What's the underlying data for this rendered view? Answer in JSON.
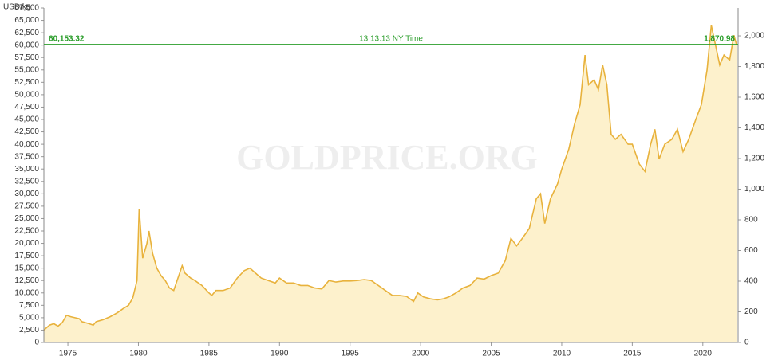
{
  "chart_data": {
    "type": "area",
    "y_axis_label": "USD/kg",
    "watermark": "GOLDPRICE.ORG",
    "time_label": "13:13:13 NY Time",
    "current_kg": {
      "value": 60153.32,
      "label": "60,153.32"
    },
    "current_oz": {
      "value": 1870.98,
      "label": "1,870.98"
    },
    "line_color": "#e8b23c",
    "fill_color": "#fdf1cc",
    "current_color": "#2a9d2a",
    "xlim": [
      1973.3,
      2022.5
    ],
    "xticks": [
      1975,
      1980,
      1985,
      1990,
      1995,
      2000,
      2005,
      2010,
      2015,
      2020
    ],
    "ylim": [
      0,
      67500
    ],
    "yticks": [
      0,
      {
        "value": 2500,
        "label": "2,500"
      },
      {
        "value": 5000,
        "label": "5,000"
      },
      {
        "value": 7500,
        "label": "7,500"
      },
      {
        "value": 10000,
        "label": "10,000"
      },
      {
        "value": 12500,
        "label": "12,500"
      },
      {
        "value": 15000,
        "label": "15,000"
      },
      {
        "value": 17500,
        "label": "17,500"
      },
      {
        "value": 20000,
        "label": "20,000"
      },
      {
        "value": 22500,
        "label": "22,500"
      },
      {
        "value": 25000,
        "label": "25,000"
      },
      {
        "value": 27500,
        "label": "27,500"
      },
      {
        "value": 30000,
        "label": "30,000"
      },
      {
        "value": 32500,
        "label": "32,500"
      },
      {
        "value": 35000,
        "label": "35,000"
      },
      {
        "value": 37500,
        "label": "37,500"
      },
      {
        "value": 40000,
        "label": "40,000"
      },
      {
        "value": 42500,
        "label": "42,500"
      },
      {
        "value": 45000,
        "label": "45,000"
      },
      {
        "value": 47500,
        "label": "47,500"
      },
      {
        "value": 50000,
        "label": "50,000"
      },
      {
        "value": 52500,
        "label": "52,500"
      },
      {
        "value": 55000,
        "label": "55,000"
      },
      {
        "value": 57500,
        "label": "57,500"
      },
      {
        "value": 60000,
        "label": "60,000"
      },
      {
        "value": 62500,
        "label": "62,500"
      },
      {
        "value": 65000,
        "label": "65,000"
      },
      {
        "value": 67500,
        "label": "67,500"
      }
    ],
    "y2lim": [
      0,
      2182
    ],
    "y2ticks": [
      0,
      200,
      400,
      600,
      800,
      {
        "value": 1000,
        "label": "1,000"
      },
      {
        "value": 1200,
        "label": "1,200"
      },
      {
        "value": 1400,
        "label": "1,400"
      },
      {
        "value": 1600,
        "label": "1,600"
      },
      {
        "value": 1800,
        "label": "1,800"
      },
      {
        "value": 2000,
        "label": "2,000"
      }
    ],
    "x": [
      1973.3,
      1973.7,
      1974.0,
      1974.3,
      1974.6,
      1974.9,
      1975.2,
      1975.5,
      1975.8,
      1976.0,
      1976.5,
      1976.8,
      1977.0,
      1977.5,
      1978.0,
      1978.5,
      1978.9,
      1979.3,
      1979.6,
      1979.9,
      1980.05,
      1980.3,
      1980.6,
      1980.75,
      1981.0,
      1981.3,
      1981.6,
      1981.9,
      1982.2,
      1982.5,
      1982.8,
      1983.1,
      1983.3,
      1983.7,
      1984.0,
      1984.5,
      1985.0,
      1985.2,
      1985.5,
      1986.0,
      1986.5,
      1987.0,
      1987.5,
      1987.9,
      1988.3,
      1988.7,
      1989.2,
      1989.7,
      1990.0,
      1990.5,
      1991.0,
      1991.5,
      1992.0,
      1992.5,
      1993.0,
      1993.5,
      1994.0,
      1994.5,
      1995.0,
      1995.5,
      1996.0,
      1996.5,
      1997.0,
      1997.5,
      1998.0,
      1998.5,
      1999.0,
      1999.5,
      1999.8,
      2000.2,
      2000.7,
      2001.2,
      2001.6,
      2002.0,
      2002.5,
      2003.0,
      2003.5,
      2004.0,
      2004.5,
      2005.0,
      2005.5,
      2006.0,
      2006.4,
      2006.8,
      2007.2,
      2007.7,
      2008.2,
      2008.5,
      2008.8,
      2009.2,
      2009.7,
      2010.0,
      2010.5,
      2010.9,
      2011.3,
      2011.65,
      2011.9,
      2012.3,
      2012.6,
      2012.9,
      2013.2,
      2013.5,
      2013.8,
      2014.2,
      2014.7,
      2015.0,
      2015.5,
      2015.9,
      2016.3,
      2016.6,
      2016.9,
      2017.3,
      2017.8,
      2018.2,
      2018.6,
      2019.0,
      2019.5,
      2019.9,
      2020.3,
      2020.6,
      2020.9,
      2021.2,
      2021.5,
      2021.9,
      2022.2,
      2022.4
    ],
    "values": [
      2500,
      3500,
      3800,
      3300,
      4000,
      5500,
      5200,
      5000,
      4800,
      4200,
      3800,
      3500,
      4200,
      4600,
      5200,
      6000,
      6800,
      7500,
      9000,
      12500,
      27000,
      17000,
      20000,
      22500,
      18000,
      15000,
      13500,
      12500,
      11000,
      10500,
      13000,
      15500,
      14000,
      13000,
      12500,
      11500,
      10000,
      9500,
      10500,
      10500,
      11000,
      13000,
      14500,
      15000,
      14000,
      13000,
      12500,
      12000,
      13000,
      12000,
      12000,
      11500,
      11500,
      11000,
      10800,
      12500,
      12200,
      12400,
      12400,
      12500,
      12700,
      12500,
      11500,
      10500,
      9500,
      9500,
      9300,
      8300,
      10000,
      9200,
      8800,
      8600,
      8800,
      9200,
      10000,
      11000,
      11500,
      13000,
      12800,
      13500,
      14000,
      16500,
      21000,
      19500,
      21000,
      23000,
      29000,
      30000,
      24000,
      29000,
      32000,
      35000,
      39000,
      44000,
      48000,
      58000,
      52000,
      53000,
      51000,
      56000,
      52000,
      42000,
      41000,
      42000,
      40000,
      40000,
      36000,
      34500,
      40000,
      43000,
      37000,
      40000,
      41000,
      43000,
      38500,
      41000,
      45000,
      48000,
      55000,
      64000,
      60000,
      56000,
      58000,
      57000,
      62000,
      60000
    ]
  }
}
